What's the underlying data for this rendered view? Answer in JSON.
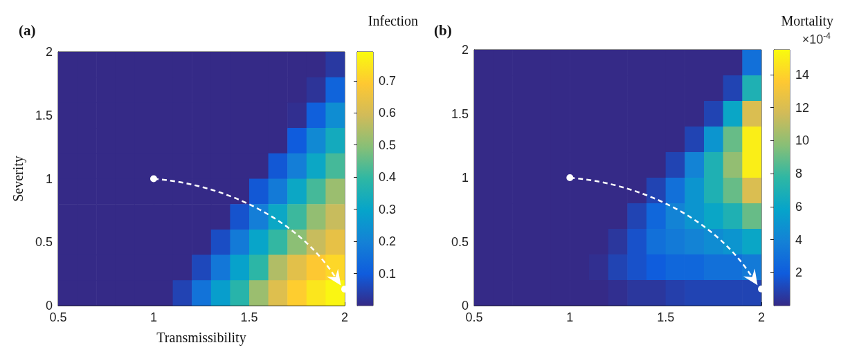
{
  "chart_data": [
    {
      "type": "heatmap",
      "title": "(a)",
      "xlabel": "Transmissibility",
      "ylabel": "Severity",
      "clabel": "Infection",
      "x": [
        0.55,
        0.65,
        0.75,
        0.85,
        0.95,
        1.05,
        1.15,
        1.25,
        1.35,
        1.45,
        1.55,
        1.65,
        1.75,
        1.85,
        1.95
      ],
      "y": [
        1.9,
        1.7,
        1.5,
        1.3,
        1.1,
        0.9,
        0.7,
        0.5,
        0.3,
        0.1
      ],
      "cells": [
        [
          0,
          0,
          0,
          0,
          0,
          0,
          0,
          0,
          0,
          0,
          0,
          0,
          0,
          0,
          0.03
        ],
        [
          0,
          0,
          0,
          0,
          0,
          0,
          0,
          0,
          0,
          0,
          0,
          0,
          0,
          0.02,
          0.12
        ],
        [
          0,
          0,
          0,
          0,
          0,
          0,
          0,
          0,
          0,
          0,
          0,
          0,
          0.01,
          0.11,
          0.23
        ],
        [
          0,
          0,
          0,
          0,
          0,
          0,
          0,
          0,
          0,
          0,
          0,
          0,
          0.1,
          0.22,
          0.33
        ],
        [
          0,
          0,
          0,
          0,
          0,
          0,
          0,
          0,
          0,
          0,
          0,
          0.09,
          0.19,
          0.31,
          0.42
        ],
        [
          0,
          0,
          0,
          0,
          0,
          0,
          0,
          0,
          0,
          0,
          0.09,
          0.18,
          0.31,
          0.42,
          0.52
        ],
        [
          0,
          0,
          0,
          0,
          0,
          0,
          0,
          0,
          0,
          0.08,
          0.19,
          0.31,
          0.41,
          0.51,
          0.58
        ],
        [
          0,
          0,
          0,
          0,
          0,
          0,
          0,
          0,
          0.07,
          0.18,
          0.3,
          0.4,
          0.5,
          0.58,
          0.64
        ],
        [
          0,
          0,
          0,
          0,
          0,
          0,
          0,
          0.06,
          0.17,
          0.29,
          0.39,
          0.55,
          0.63,
          0.69,
          0.72
        ],
        [
          0,
          0,
          0,
          0,
          0,
          0,
          0.05,
          0.16,
          0.28,
          0.38,
          0.52,
          0.62,
          0.7,
          0.75,
          0.78
        ]
      ],
      "xlim": [
        0.5,
        2
      ],
      "ylim": [
        0,
        2
      ],
      "xticks": [
        0.5,
        1,
        1.5,
        2
      ],
      "yticks": [
        0,
        0.5,
        1,
        1.5,
        2
      ],
      "clim": [
        0,
        0.79
      ],
      "cticks": [
        0.1,
        0.2,
        0.3,
        0.4,
        0.5,
        0.6,
        0.7
      ]
    },
    {
      "type": "heatmap",
      "title": "(b)",
      "clabel": "Mortality",
      "annotations": [
        "×10$^{-4}$"
      ],
      "x": [
        0.55,
        0.65,
        0.75,
        0.85,
        0.95,
        1.05,
        1.15,
        1.25,
        1.35,
        1.45,
        1.55,
        1.65,
        1.75,
        1.85,
        1.95
      ],
      "y": [
        1.9,
        1.7,
        1.5,
        1.3,
        1.1,
        0.9,
        0.7,
        0.5,
        0.3,
        0.1
      ],
      "cells": [
        [
          0,
          0,
          0,
          0,
          0,
          0,
          0,
          0,
          0,
          0,
          0,
          0,
          0,
          0,
          3
        ],
        [
          0,
          0,
          0,
          0,
          0,
          0,
          0,
          0,
          0,
          0,
          0,
          0,
          0,
          1,
          7
        ],
        [
          0,
          0,
          0,
          0,
          0,
          0,
          0,
          0,
          0,
          0,
          0,
          0,
          1,
          6,
          12
        ],
        [
          0,
          0,
          0,
          0,
          0,
          0,
          0,
          0,
          0,
          0,
          0,
          1,
          5,
          9,
          15
        ],
        [
          0,
          0,
          0,
          0,
          0,
          0,
          0,
          0,
          0,
          0,
          1,
          4,
          7,
          10,
          15
        ],
        [
          0,
          0,
          0,
          0,
          0,
          0,
          0,
          0,
          0,
          1,
          3,
          5,
          7,
          9,
          12
        ],
        [
          0,
          0,
          0,
          0,
          0,
          0,
          0,
          0,
          1,
          2.5,
          4,
          5,
          6,
          7,
          9
        ],
        [
          0,
          0,
          0,
          0,
          0,
          0,
          0,
          0.5,
          1.5,
          3,
          3.5,
          4,
          4.5,
          5,
          6
        ],
        [
          0,
          0,
          0,
          0,
          0,
          0,
          0.2,
          1,
          1.5,
          2,
          2.5,
          2.5,
          3,
          3,
          3.5
        ],
        [
          0,
          0,
          0,
          0,
          0,
          0,
          0,
          0.2,
          0.5,
          0.5,
          0.8,
          1,
          1,
          1,
          1
        ]
      ],
      "xlim": [
        0.5,
        2
      ],
      "ylim": [
        0,
        2
      ],
      "xticks": [
        0.5,
        1,
        1.5,
        2
      ],
      "yticks": [
        0,
        0.5,
        1,
        1.5,
        2
      ],
      "clim": [
        0,
        15.5
      ],
      "cticks": [
        2,
        4,
        6,
        8,
        10,
        12,
        14
      ]
    }
  ]
}
